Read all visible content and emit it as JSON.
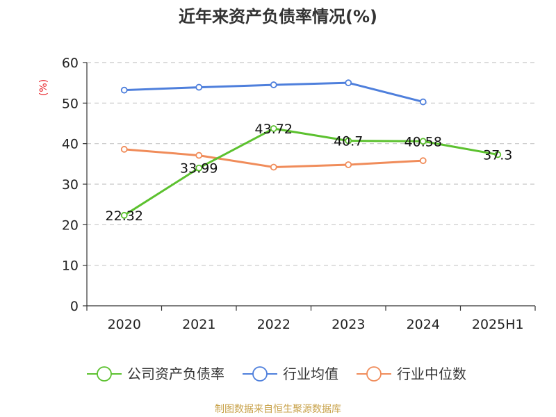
{
  "chart_data": {
    "type": "line",
    "title": "近年来资产负债率情况(%)",
    "unit_label": "(%)",
    "categories": [
      "2020",
      "2021",
      "2022",
      "2023",
      "2024",
      "2025H1"
    ],
    "ylim": [
      0,
      60
    ],
    "yticks": [
      0,
      10,
      20,
      30,
      40,
      50,
      60
    ],
    "grid": true,
    "legend_position": "bottom",
    "series": [
      {
        "name": "公司资产负债率",
        "color": "#5cc12f",
        "values": [
          22.32,
          33.99,
          43.72,
          40.7,
          40.58,
          37.3
        ],
        "labels": [
          "22.32",
          "33.99",
          "43.72",
          "40.7",
          "40.58",
          "37.3"
        ]
      },
      {
        "name": "行业均值",
        "color": "#4e7fdc",
        "values": [
          53.2,
          53.9,
          54.5,
          55.0,
          50.3,
          null
        ]
      },
      {
        "name": "行业中位数",
        "color": "#f08c5a",
        "values": [
          38.6,
          37.1,
          34.2,
          34.8,
          35.8,
          null
        ]
      }
    ]
  },
  "colors": {
    "unit_label": "#e8262d",
    "source": "#c8a24a"
  },
  "source": "制图数据来自恒生聚源数据库"
}
